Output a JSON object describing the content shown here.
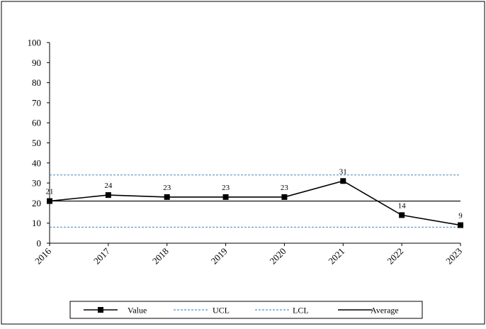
{
  "chart_data": {
    "type": "line",
    "categories": [
      "2016",
      "2017",
      "2018",
      "2019",
      "2020",
      "2021",
      "2022",
      "2023"
    ],
    "ylim": [
      0,
      100
    ],
    "yticks": [
      "0",
      "10",
      "20",
      "30",
      "40",
      "50",
      "60",
      "70",
      "80",
      "90",
      "100"
    ],
    "grid": false,
    "legend_position": "bottom",
    "series": [
      {
        "name": "Value",
        "values": [
          21,
          24,
          23,
          23,
          23,
          31,
          14,
          9
        ],
        "data_labels": [
          "21",
          "24",
          "23",
          "23",
          "23",
          "31",
          "14",
          "9"
        ],
        "color": "#000000",
        "marker": "square",
        "style": "solid"
      },
      {
        "name": "UCL",
        "constant": 34,
        "color": "#2e75b6",
        "style": "dashed"
      },
      {
        "name": "LCL",
        "constant": 8,
        "color": "#2e75b6",
        "style": "dashed"
      },
      {
        "name": "Average",
        "constant": 21,
        "color": "#000000",
        "style": "solid"
      }
    ]
  }
}
